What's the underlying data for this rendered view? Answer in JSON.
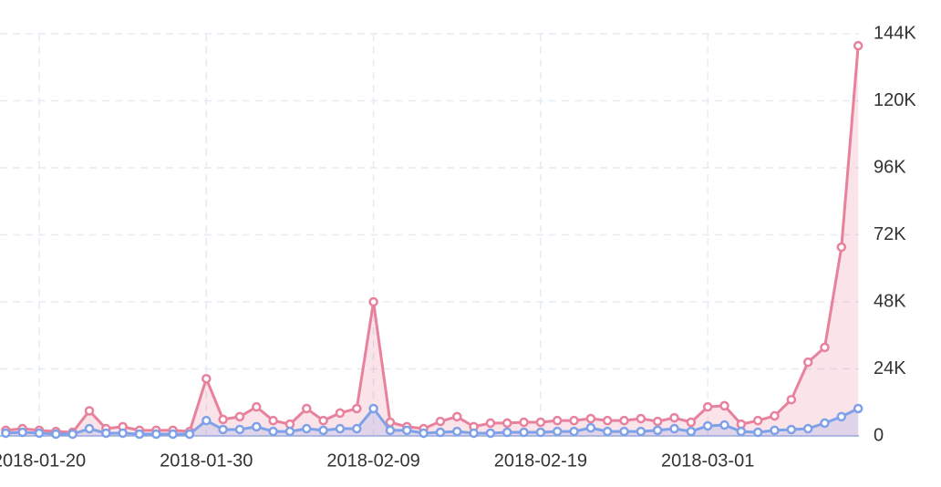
{
  "chart_data": {
    "type": "line",
    "categories": [
      null,
      null,
      "2018-01-20",
      null,
      null,
      null,
      null,
      null,
      null,
      null,
      null,
      null,
      "2018-01-30",
      null,
      null,
      null,
      null,
      null,
      null,
      null,
      null,
      null,
      "2018-02-09",
      null,
      null,
      null,
      null,
      null,
      null,
      null,
      null,
      null,
      "2018-02-19",
      null,
      null,
      null,
      null,
      null,
      null,
      null,
      null,
      null,
      "2018-03-01",
      null,
      null,
      null,
      null,
      null,
      null,
      null,
      null,
      null
    ],
    "series": [
      {
        "color": "#e8819b",
        "values": [
          2000,
          2600,
          2000,
          1600,
          1300,
          9000,
          2600,
          3300,
          2000,
          2000,
          2000,
          1600,
          20500,
          5900,
          6900,
          10400,
          5500,
          4200,
          9800,
          5500,
          8200,
          9800,
          48000,
          4900,
          3300,
          2600,
          5200,
          6900,
          3300,
          4600,
          4600,
          4900,
          4900,
          5500,
          5500,
          6200,
          5500,
          5500,
          6200,
          5200,
          6500,
          4900,
          10400,
          10800,
          4200,
          5500,
          7200,
          13000,
          26400,
          31700,
          67600,
          139700
        ]
      },
      {
        "color": "#7ea1e8",
        "values": [
          1000,
          1300,
          1000,
          650,
          650,
          2600,
          1000,
          1000,
          650,
          650,
          650,
          650,
          5500,
          2300,
          2300,
          3300,
          1600,
          1600,
          2600,
          2000,
          2600,
          2600,
          9800,
          2000,
          2000,
          1000,
          1300,
          1600,
          1000,
          1000,
          1300,
          1300,
          1300,
          1600,
          1600,
          2900,
          1600,
          1600,
          1600,
          2000,
          2600,
          1600,
          3600,
          3900,
          1600,
          1300,
          2000,
          2300,
          2600,
          4600,
          6900,
          9800
        ]
      }
    ],
    "ylim": [
      0,
      144000
    ],
    "yticks": [
      0,
      {
        "value": 24000,
        "label": "24K"
      },
      {
        "value": 48000,
        "label": "48K"
      },
      {
        "value": 72000,
        "label": "72K"
      },
      {
        "value": 96000,
        "label": "96K"
      },
      {
        "value": 120000,
        "label": "120K"
      },
      {
        "value": 144000,
        "label": "144K"
      }
    ],
    "grid": true
  }
}
